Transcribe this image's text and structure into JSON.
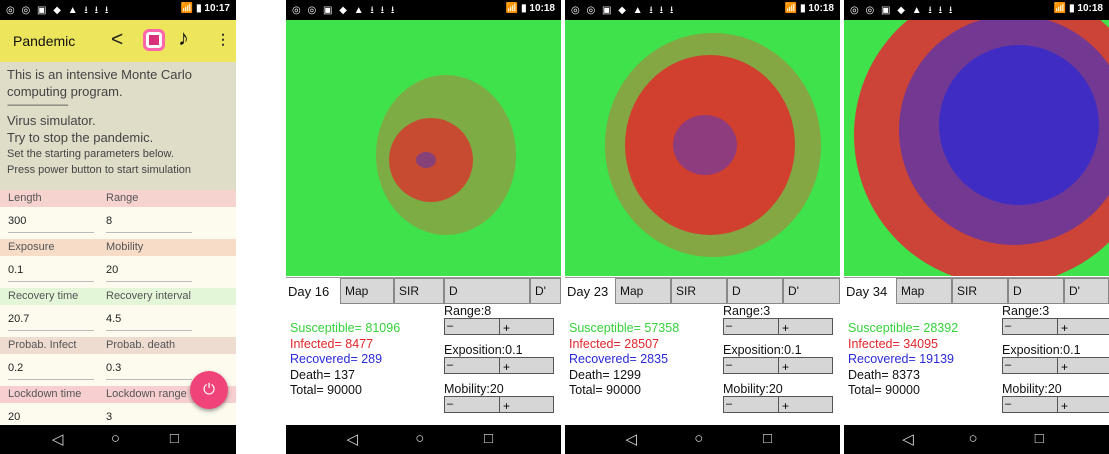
{
  "status_bars": {
    "left_icons": "◎ ◎ ▣ ◆ ▲ ⭳ ⭳ ⭳",
    "p1_right": "📶 ▮ 10:17",
    "p2_right": "📶 ▮ 10:18",
    "p3_right": "📶 ▮ 10:18",
    "p4_right": "📶 ▮ 10:18"
  },
  "app": {
    "title": "Pandemic",
    "share_icon": "share-icon",
    "instagram_icon": "instagram-icon",
    "music_icon": "music-note-icon",
    "menu_icon": "overflow-menu-icon",
    "accent_color": "#ede55c",
    "fab_color": "#f0437a"
  },
  "intro": {
    "line1": "This is an intensive Monte Carlo computing program.",
    "dashes": "--------------------------",
    "line2": "Virus simulator.",
    "line3": "Try to stop the pandemic.",
    "line4": "Set the starting parameters below.",
    "line5": "Press power button to start simulation"
  },
  "params": [
    {
      "label1": "Length",
      "value1": "300",
      "label2": "Range",
      "value2": "8",
      "color": "#f7d3cf"
    },
    {
      "label1": "Exposure",
      "value1": "0.1",
      "label2": "Mobility",
      "value2": "20",
      "color": "#f7dcc8"
    },
    {
      "label1": "Recovery time",
      "value1": "20.7",
      "label2": "Recovery interval",
      "value2": "4.5",
      "color": "#e3f6d8"
    },
    {
      "label1": "Probab. Infect",
      "value1": "0.2",
      "label2": "Probab. death",
      "value2": "0.3",
      "color": "#eedcd0"
    },
    {
      "label1": "Lockdown time",
      "value1": "20",
      "label2": "Lockdown range",
      "value2": "3",
      "color": "#f7cfd0"
    }
  ],
  "nav": {
    "back": "◁",
    "home": "○",
    "recent": "□"
  },
  "tabs": {
    "map": "Map",
    "sir": "SIR",
    "d": "D",
    "dprime": "D'"
  },
  "colors": {
    "susceptible": "#3fe24b",
    "infected": "#e0262a",
    "recovered": "#2a2ad8"
  },
  "screens": [
    {
      "day": "Day 16",
      "susceptible": "Susceptible= 81096",
      "infected": "Infected= 8477",
      "recovered": "Recovered= 289",
      "death": "Death= 137",
      "total": "Total= 90000",
      "range": "Range:8",
      "exposition": "Exposition:0.1",
      "mobility": "Mobility:20"
    },
    {
      "day": "Day 23",
      "susceptible": "Susceptible= 57358",
      "infected": "Infected= 28507",
      "recovered": "Recovered= 2835",
      "death": "Death= 1299",
      "total": "Total= 90000",
      "range": "Range:3",
      "exposition": "Exposition:0.1",
      "mobility": "Mobility:20"
    },
    {
      "day": "Day 34",
      "susceptible": "Susceptible= 28392",
      "infected": "Infected= 34095",
      "recovered": "Recovered= 19139",
      "death": "Death= 8373",
      "total": "Total= 90000",
      "range": "Range:3",
      "exposition": "Exposition:0.1",
      "mobility": "Mobility:20"
    }
  ],
  "slider_labels": {
    "minus": "–",
    "plus": "+"
  }
}
